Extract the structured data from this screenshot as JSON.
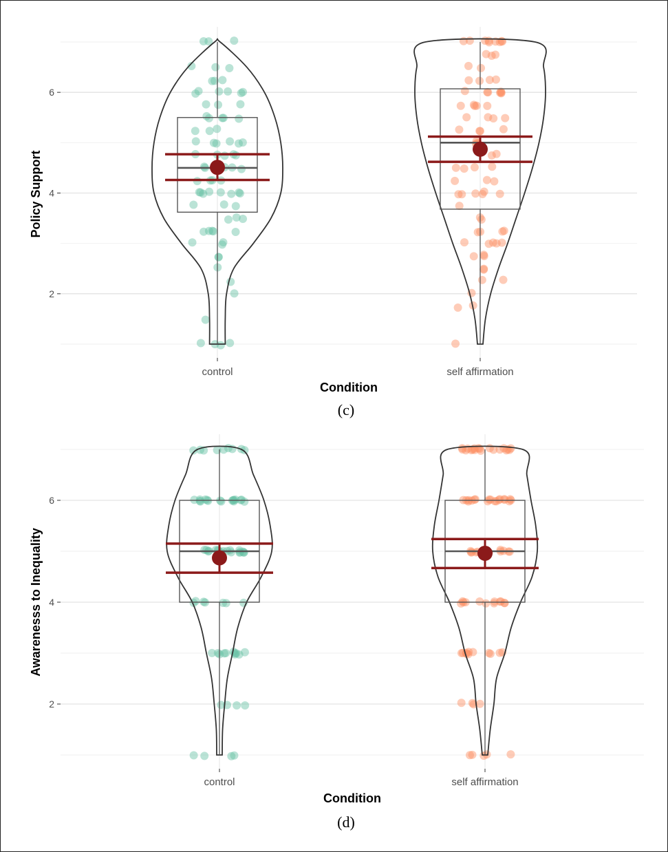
{
  "chart_data": [
    {
      "type": "violin",
      "caption": "(c)",
      "xlabel": "Condition",
      "ylabel": "Policy Support",
      "ylim": [
        1,
        7
      ],
      "yticks": [
        2,
        4,
        6
      ],
      "categories": [
        "control",
        "self affirmation"
      ],
      "colors": {
        "control": "#66c2a5",
        "self affirmation": "#fc8d62",
        "ci": "#8b1a1a"
      },
      "groups": [
        {
          "name": "control",
          "box": {
            "q1": 3.62,
            "median": 4.5,
            "q3": 5.5,
            "min": 1,
            "max": 7
          },
          "mean": 4.51,
          "ci": [
            4.26,
            4.77
          ],
          "violin": [
            [
              1,
              0.12
            ],
            [
              1.5,
              0.12
            ],
            [
              2,
              0.14
            ],
            [
              2.5,
              0.25
            ],
            [
              3,
              0.55
            ],
            [
              3.5,
              0.82
            ],
            [
              4,
              0.97
            ],
            [
              4.5,
              1.0
            ],
            [
              5,
              0.97
            ],
            [
              5.5,
              0.88
            ],
            [
              6,
              0.72
            ],
            [
              6.5,
              0.45
            ],
            [
              7,
              0.0
            ]
          ],
          "points": [
            1,
            1,
            1,
            1,
            1.5,
            2,
            2.25,
            2.5,
            2.75,
            2.75,
            3,
            3,
            3,
            3.25,
            3.25,
            3.25,
            3.25,
            3.25,
            3.5,
            3.5,
            3.5,
            3.75,
            3.75,
            3.75,
            4,
            4,
            4,
            4,
            4,
            4,
            4,
            4,
            4.25,
            4.25,
            4.25,
            4.25,
            4.5,
            4.5,
            4.5,
            4.5,
            4.5,
            4.75,
            4.75,
            4.75,
            4.75,
            4.75,
            5,
            5,
            5,
            5,
            5,
            5,
            5.25,
            5.25,
            5.25,
            5.5,
            5.5,
            5.5,
            5.5,
            5.5,
            5.75,
            5.75,
            5.75,
            6,
            6,
            6,
            6,
            6,
            6,
            6.25,
            6.25,
            6.25,
            6.5,
            6.5,
            6.5,
            7,
            7,
            7
          ]
        },
        {
          "name": "self affirmation",
          "box": {
            "q1": 3.68,
            "median": 5.0,
            "q3": 6.07,
            "min": 1,
            "max": 7
          },
          "mean": 4.87,
          "ci": [
            4.62,
            5.12
          ],
          "violin": [
            [
              1,
              0.0
            ],
            [
              1.5,
              0.08
            ],
            [
              2,
              0.16
            ],
            [
              2.5,
              0.28
            ],
            [
              3,
              0.42
            ],
            [
              3.5,
              0.55
            ],
            [
              4,
              0.68
            ],
            [
              4.5,
              0.8
            ],
            [
              5,
              0.9
            ],
            [
              5.5,
              0.97
            ],
            [
              6,
              1.0
            ],
            [
              6.5,
              0.97
            ],
            [
              7,
              0.84
            ]
          ],
          "points": [
            1,
            1.75,
            1.75,
            2,
            2.25,
            2.25,
            2.5,
            2.5,
            2.75,
            2.75,
            2.75,
            3,
            3,
            3,
            3,
            3,
            3.25,
            3.25,
            3.25,
            3.25,
            3.5,
            3.5,
            3.75,
            4,
            4,
            4,
            4,
            4,
            4,
            4.25,
            4.25,
            4.25,
            4.5,
            4.5,
            4.5,
            4.5,
            4.75,
            4.75,
            5,
            5,
            5,
            5,
            5.25,
            5.25,
            5.25,
            5.25,
            5.5,
            5.5,
            5.5,
            5.5,
            5.75,
            5.75,
            5.75,
            5.75,
            5.75,
            6,
            6,
            6,
            6,
            6,
            6,
            6,
            6.25,
            6.25,
            6.25,
            6.25,
            6.5,
            6.5,
            6.75,
            6.75,
            6.75,
            7,
            7,
            7,
            7,
            7,
            7,
            7,
            7,
            7
          ]
        }
      ]
    },
    {
      "type": "violin",
      "caption": "(d)",
      "xlabel": "Condition",
      "ylabel": "Awarenesss to Inequality",
      "ylim": [
        1,
        7
      ],
      "yticks": [
        2,
        4,
        6
      ],
      "categories": [
        "control",
        "self affirmation"
      ],
      "colors": {
        "control": "#66c2a5",
        "self affirmation": "#fc8d62",
        "ci": "#8b1a1a"
      },
      "groups": [
        {
          "name": "control",
          "box": {
            "q1": 4.0,
            "median": 5.0,
            "q3": 6.0,
            "min": 1,
            "max": 7
          },
          "mean": 4.87,
          "ci": [
            4.58,
            5.15
          ],
          "violin": [
            [
              1,
              0.0
            ],
            [
              1.5,
              0.06
            ],
            [
              2,
              0.1
            ],
            [
              2.5,
              0.15
            ],
            [
              3,
              0.25
            ],
            [
              3.5,
              0.35
            ],
            [
              4,
              0.52
            ],
            [
              4.5,
              0.8
            ],
            [
              5,
              1.0
            ],
            [
              5.5,
              0.97
            ],
            [
              6,
              0.85
            ],
            [
              6.5,
              0.65
            ],
            [
              7,
              0.42
            ]
          ],
          "points": [
            1,
            1,
            1,
            1,
            2,
            2,
            2,
            2,
            3,
            3,
            3,
            3,
            3,
            3,
            3,
            3,
            3,
            3,
            3,
            4,
            4,
            4,
            4,
            4,
            4,
            4,
            5,
            5,
            5,
            5,
            5,
            5,
            5,
            5,
            5,
            5,
            5,
            5,
            5,
            5,
            5,
            5,
            5,
            5,
            6,
            6,
            6,
            6,
            6,
            6,
            6,
            6,
            6,
            6,
            6,
            6,
            6,
            6,
            6,
            6,
            6,
            7,
            7,
            7,
            7,
            7,
            7,
            7,
            7,
            7
          ]
        },
        {
          "name": "self affirmation",
          "box": {
            "q1": 4.0,
            "median": 5.0,
            "q3": 6.0,
            "min": 1,
            "max": 7
          },
          "mean": 4.96,
          "ci": [
            4.67,
            5.24
          ],
          "violin": [
            [
              1,
              0.0
            ],
            [
              1.5,
              0.1
            ],
            [
              2,
              0.17
            ],
            [
              2.5,
              0.22
            ],
            [
              3,
              0.38
            ],
            [
              3.5,
              0.5
            ],
            [
              4,
              0.68
            ],
            [
              4.5,
              0.9
            ],
            [
              5,
              1.0
            ],
            [
              5.5,
              0.97
            ],
            [
              6,
              0.88
            ],
            [
              6.5,
              0.8
            ],
            [
              7,
              0.72
            ]
          ],
          "points": [
            1,
            1,
            1,
            1,
            1,
            2,
            2,
            2,
            2,
            3,
            3,
            3,
            3,
            3,
            3,
            3,
            3,
            3,
            3,
            3,
            4,
            4,
            4,
            4,
            4,
            4,
            4,
            4,
            4,
            4,
            4,
            4,
            5,
            5,
            5,
            5,
            5,
            5,
            5,
            5,
            5,
            5,
            5,
            5,
            5,
            5,
            5,
            5,
            6,
            6,
            6,
            6,
            6,
            6,
            6,
            6,
            6,
            6,
            6,
            6,
            6,
            6,
            6,
            6,
            6,
            6,
            6,
            7,
            7,
            7,
            7,
            7,
            7,
            7,
            7,
            7,
            7,
            7,
            7,
            7,
            7,
            7,
            7,
            7,
            7,
            7
          ]
        }
      ]
    }
  ]
}
